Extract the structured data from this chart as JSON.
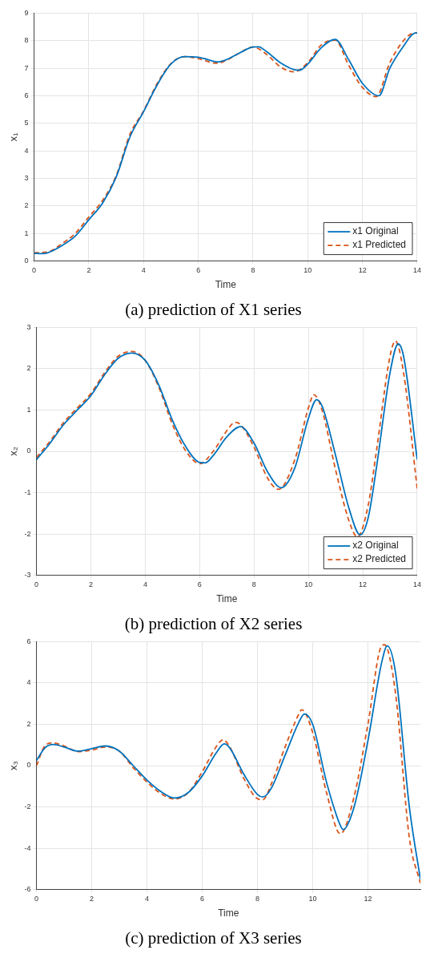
{
  "chart_data": [
    {
      "type": "line",
      "title": "(a) prediction of X1 series",
      "xlabel": "Time",
      "ylabel": "x₁",
      "xlim": [
        0,
        14
      ],
      "xticks": [
        0,
        2,
        4,
        6,
        8,
        10,
        12,
        14
      ],
      "ylim": [
        0,
        9
      ],
      "yticks": [
        0,
        1,
        2,
        3,
        4,
        5,
        6,
        7,
        8,
        9
      ],
      "grid": true,
      "legend": "bottom right",
      "marker": "none",
      "series": [
        {
          "name": "x1 Original",
          "color": "#0072bd",
          "line_style": "solid",
          "x": [
            0,
            0.3,
            0.5,
            1,
            1.5,
            2,
            2.5,
            3,
            3.5,
            4,
            4.5,
            5,
            5.5,
            6,
            6.5,
            6.7,
            7,
            7.5,
            8,
            8.2,
            8.5,
            9,
            9.5,
            9.7,
            10,
            10.5,
            11,
            11.5,
            12,
            12.6,
            13,
            13.5,
            13.9,
            14
          ],
          "values": [
            0.28,
            0.27,
            0.3,
            0.55,
            0.9,
            1.5,
            2.1,
            3.05,
            4.5,
            5.42,
            6.4,
            7.15,
            7.42,
            7.4,
            7.27,
            7.23,
            7.3,
            7.55,
            7.77,
            7.78,
            7.6,
            7.2,
            6.95,
            6.93,
            7.15,
            7.75,
            8.05,
            7.3,
            6.45,
            6.0,
            7.0,
            7.8,
            8.27,
            8.28
          ]
        },
        {
          "name": "x1 Predicted",
          "color": "#d95319",
          "line_style": "dashed",
          "x": [
            0,
            0.5,
            1,
            1.5,
            2,
            2.5,
            3,
            3.5,
            4,
            4.5,
            5,
            5.5,
            6,
            6.5,
            6.7,
            7,
            7.5,
            8,
            8.5,
            9,
            9.5,
            10,
            10.5,
            11,
            11.5,
            12,
            12.5,
            13,
            13.5,
            13.9,
            14
          ],
          "values": [
            0.3,
            0.33,
            0.62,
            1.0,
            1.6,
            2.2,
            3.1,
            4.6,
            5.45,
            6.45,
            7.17,
            7.42,
            7.35,
            7.2,
            7.18,
            7.28,
            7.55,
            7.77,
            7.5,
            7.05,
            6.87,
            7.2,
            7.85,
            8.02,
            7.1,
            6.3,
            5.97,
            7.2,
            8.0,
            8.28,
            8.28
          ]
        }
      ]
    },
    {
      "type": "line",
      "title": "(b) prediction of X2 series",
      "xlabel": "Time",
      "ylabel": "x₂",
      "xlim": [
        0,
        14
      ],
      "xticks": [
        0,
        2,
        4,
        6,
        8,
        10,
        12,
        14
      ],
      "ylim": [
        -3,
        3
      ],
      "yticks": [
        -3,
        -2,
        -1,
        0,
        1,
        2,
        3
      ],
      "grid": true,
      "legend": "bottom right",
      "marker": "none",
      "series": [
        {
          "name": "x2 Original",
          "color": "#0072bd",
          "line_style": "solid",
          "x": [
            0,
            0.5,
            1,
            1.5,
            2,
            2.5,
            3,
            3.5,
            4,
            4.5,
            5,
            5.5,
            6,
            6.2,
            6.5,
            7,
            7.5,
            8,
            8.5,
            9,
            9.5,
            10,
            10.3,
            10.5,
            11,
            11.5,
            11.9,
            12.2,
            12.5,
            13,
            13.3,
            13.5,
            14
          ],
          "values": [
            -0.2,
            0.2,
            0.65,
            1.0,
            1.35,
            1.85,
            2.25,
            2.38,
            2.2,
            1.6,
            0.75,
            0.1,
            -0.27,
            -0.28,
            -0.1,
            0.35,
            0.6,
            0.2,
            -0.5,
            -0.88,
            -0.4,
            0.8,
            1.25,
            1.1,
            -0.1,
            -1.4,
            -2.02,
            -1.6,
            -0.4,
            1.9,
            2.6,
            2.3,
            -0.2
          ]
        },
        {
          "name": "x2 Predicted",
          "color": "#d95319",
          "line_style": "dashed",
          "x": [
            0,
            0.5,
            1,
            1.5,
            2,
            2.5,
            3,
            3.5,
            4,
            4.5,
            5,
            5.5,
            6,
            6.5,
            7,
            7.3,
            7.5,
            8,
            8.5,
            8.9,
            9.5,
            10,
            10.2,
            10.5,
            11,
            11.5,
            11.8,
            12.2,
            12.5,
            13,
            13.2,
            13.5,
            14
          ],
          "values": [
            -0.15,
            0.25,
            0.7,
            1.05,
            1.4,
            1.9,
            2.3,
            2.42,
            2.2,
            1.55,
            0.65,
            0.0,
            -0.3,
            0.0,
            0.5,
            0.7,
            0.65,
            0.1,
            -0.65,
            -0.92,
            -0.2,
            1.05,
            1.37,
            1.0,
            -0.45,
            -1.7,
            -2.07,
            -1.3,
            0.0,
            2.3,
            2.67,
            1.9,
            -0.9
          ]
        }
      ]
    },
    {
      "type": "line",
      "title": "(c) prediction of X3 series",
      "xlabel": "Time",
      "ylabel": "x₃",
      "xlim": [
        0,
        13.9
      ],
      "xticks": [
        0,
        2,
        4,
        6,
        8,
        10,
        12
      ],
      "ylim": [
        -6,
        6
      ],
      "yticks": [
        -6,
        -4,
        -2,
        0,
        2,
        4,
        6
      ],
      "grid": true,
      "marker": "none",
      "series": [
        {
          "color": "#0072bd",
          "line_style": "solid",
          "x": [
            0,
            0.3,
            0.6,
            1,
            1.5,
            2,
            2.5,
            3,
            3.5,
            4,
            4.5,
            5,
            5.5,
            6,
            6.5,
            6.8,
            7,
            7.5,
            8,
            8.2,
            8.5,
            9,
            9.5,
            9.7,
            10,
            10.5,
            11,
            11.1,
            11.5,
            12,
            12.5,
            12.7,
            13,
            13.5,
            13.9
          ],
          "values": [
            0.25,
            0.85,
            1.02,
            0.9,
            0.7,
            0.82,
            0.95,
            0.7,
            0.0,
            -0.7,
            -1.25,
            -1.57,
            -1.3,
            -0.5,
            0.6,
            1.05,
            0.85,
            -0.4,
            -1.4,
            -1.52,
            -1.1,
            0.5,
            2.1,
            2.5,
            2.0,
            -0.8,
            -2.9,
            -3.1,
            -2.0,
            1.2,
            5.0,
            5.8,
            4.5,
            -2.0,
            -5.5
          ]
        },
        {
          "color": "#d95319",
          "line_style": "dashed",
          "x": [
            0,
            0.3,
            0.6,
            1,
            1.5,
            2,
            2.5,
            3,
            3.5,
            4,
            4.5,
            5,
            5.5,
            6,
            6.5,
            6.75,
            7,
            7.5,
            8,
            8.2,
            8.5,
            9,
            9.5,
            9.6,
            10,
            10.5,
            11,
            11.5,
            12,
            12.5,
            12.6,
            13,
            13.5,
            13.9
          ],
          "values": [
            0.0,
            0.95,
            1.1,
            0.95,
            0.68,
            0.75,
            0.9,
            0.7,
            -0.1,
            -0.8,
            -1.35,
            -1.62,
            -1.3,
            -0.3,
            0.9,
            1.25,
            0.9,
            -0.6,
            -1.6,
            -1.65,
            -0.9,
            0.9,
            2.5,
            2.7,
            1.6,
            -1.3,
            -3.3,
            -1.5,
            2.0,
            5.8,
            5.85,
            3.5,
            -3.5,
            -5.7
          ]
        }
      ]
    }
  ]
}
